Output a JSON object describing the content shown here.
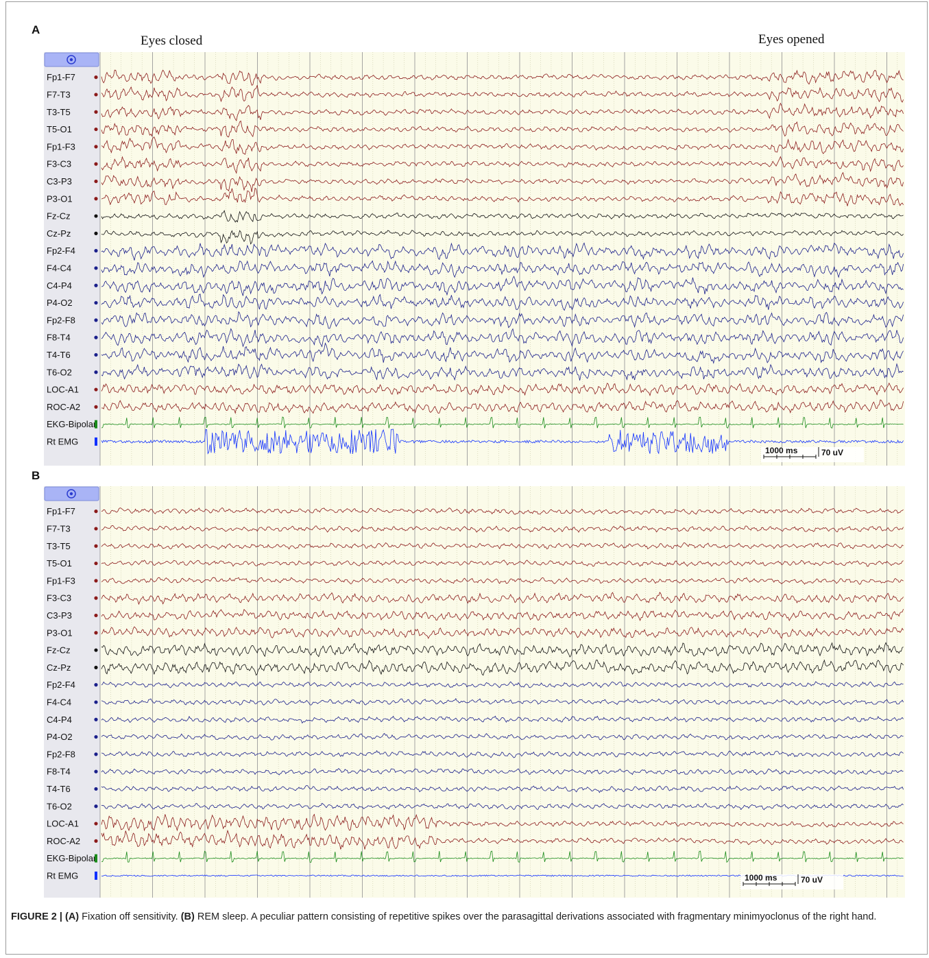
{
  "panels": [
    {
      "id": "A",
      "letter": "A",
      "annotations": [
        {
          "text": "Eyes closed"
        },
        {
          "text": "Eyes opened"
        }
      ],
      "scale": {
        "time": "1000 ms",
        "amplitude": "70 uV"
      }
    },
    {
      "id": "B",
      "letter": "B",
      "annotations": [],
      "scale": {
        "time": "1000 ms",
        "amplitude": "70 uV"
      }
    }
  ],
  "channels": [
    {
      "label": "Fp1-F7",
      "color": "#8b1a1a",
      "marker": "dot"
    },
    {
      "label": "F7-T3",
      "color": "#8b1a1a",
      "marker": "dot"
    },
    {
      "label": "T3-T5",
      "color": "#8b1a1a",
      "marker": "dot"
    },
    {
      "label": "T5-O1",
      "color": "#8b1a1a",
      "marker": "dot"
    },
    {
      "label": "Fp1-F3",
      "color": "#8b1a1a",
      "marker": "dot"
    },
    {
      "label": "F3-C3",
      "color": "#8b1a1a",
      "marker": "dot"
    },
    {
      "label": "C3-P3",
      "color": "#8b1a1a",
      "marker": "dot"
    },
    {
      "label": "P3-O1",
      "color": "#8b1a1a",
      "marker": "dot"
    },
    {
      "label": "Fz-Cz",
      "color": "#111111",
      "marker": "dot"
    },
    {
      "label": "Cz-Pz",
      "color": "#111111",
      "marker": "dot"
    },
    {
      "label": "Fp2-F4",
      "color": "#1a1f8b",
      "marker": "dot"
    },
    {
      "label": "F4-C4",
      "color": "#1a1f8b",
      "marker": "dot"
    },
    {
      "label": "C4-P4",
      "color": "#1a1f8b",
      "marker": "dot"
    },
    {
      "label": "P4-O2",
      "color": "#1a1f8b",
      "marker": "dot"
    },
    {
      "label": "Fp2-F8",
      "color": "#1a1f8b",
      "marker": "dot"
    },
    {
      "label": "F8-T4",
      "color": "#1a1f8b",
      "marker": "dot"
    },
    {
      "label": "T4-T6",
      "color": "#1a1f8b",
      "marker": "dot"
    },
    {
      "label": "T6-O2",
      "color": "#1a1f8b",
      "marker": "dot"
    },
    {
      "label": "LOC-A1",
      "color": "#8b1a1a",
      "marker": "dot"
    },
    {
      "label": "ROC-A2",
      "color": "#8b1a1a",
      "marker": "dot"
    },
    {
      "label": "EKG-Bipolar",
      "color": "#1a8b1a",
      "marker": "bar"
    },
    {
      "label": "Rt EMG",
      "color": "#1030ff",
      "marker": "bar"
    }
  ],
  "colors": {
    "background": "#fbfbe9",
    "label_bg": "#e8e8ee",
    "header_button": "#a9b4f6",
    "grid_major": "#9a9a9a",
    "grid_minor": "#c9c9a4"
  },
  "caption": {
    "label": "FIGURE 2 |",
    "parts": [
      {
        "bold": "(A)",
        "text": " Fixation off sensitivity. "
      },
      {
        "bold": "(B)",
        "text": " REM sleep. A peculiar pattern consisting of repetitive spikes over the parasagittal derivations associated with fragmentary minimyoclonus of the right hand."
      }
    ]
  },
  "header_icon": "settings-target-icon"
}
